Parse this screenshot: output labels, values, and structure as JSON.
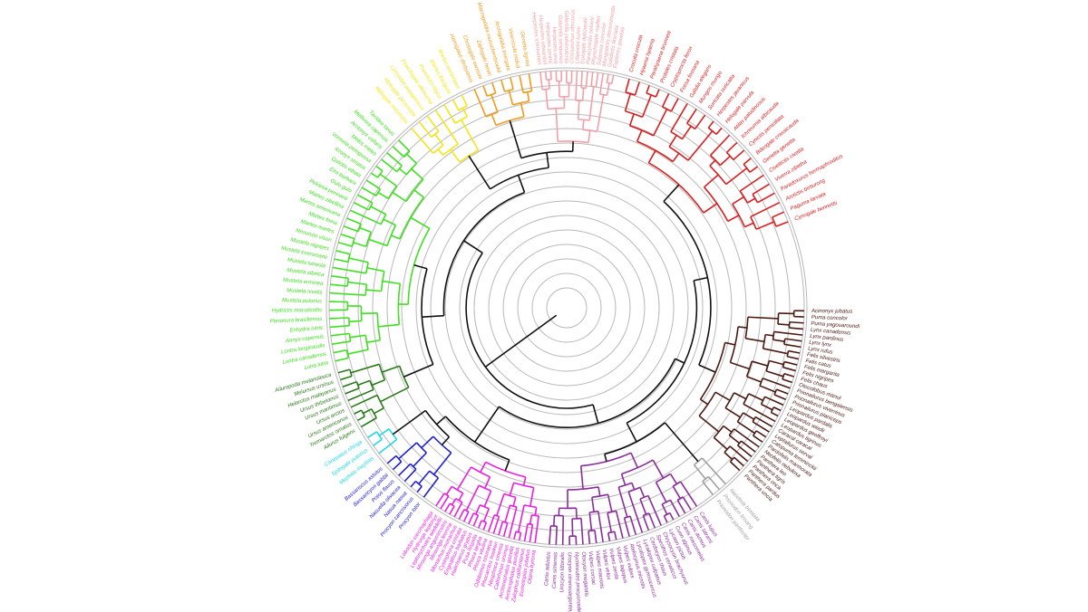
{
  "clades": [
    {
      "color": "#d81e1e",
      "labels": [
        "Crocuta crocuta",
        "Hyaena hyaena",
        "Parahyaena brunnea",
        "Proteles cristata",
        "Cryptoprocta ferox",
        "Fossa fossana",
        "Galidia elegans",
        "Mungos mungo",
        "Suricata suricatta",
        "Herpestes javanicus",
        "Helogale parvula",
        "Atilax paludinosus",
        "Ichneumia albicauda",
        "Cynictis penicillata",
        "Bdeogale crassicauda",
        "Genetta genetta",
        "Civettictis civetta",
        "Viverra zibetha",
        "Paradoxurus hermaphroditus",
        "Arctictis binturong",
        "Paguma larvata",
        "Cynogale bennettii"
      ]
    },
    {
      "color": "#4a1a12",
      "labels": [
        "Acinonyx jubatus",
        "Puma concolor",
        "Puma yagouaroundi",
        "Lynx canadensis",
        "Lynx pardinus",
        "Lynx lynx",
        "Lynx rufus",
        "Felis silvestris",
        "Felis catus",
        "Felis margarita",
        "Felis nigripes",
        "Felis chaus",
        "Otocolobus manul",
        "Prionailurus bengalensis",
        "Prionailurus viverrinus",
        "Prionailurus planiceps",
        "Leopardus pardalis",
        "Leopardus wiedii",
        "Leopardus geoffroyi",
        "Leopardus tigrinus",
        "Caracal caracal",
        "Leptailurus serval",
        "Catopuma temminckii",
        "Pardofelis marmorata",
        "Neofelis nebulosa",
        "Panthera leo",
        "Panthera tigris",
        "Panthera onca",
        "Panthera pardus",
        "Panthera uncia"
      ]
    },
    {
      "color": "#a0a0a0",
      "labels": [
        "Nandinia binotata",
        "Prionodon linsang",
        "Prionodon pardicolor"
      ]
    },
    {
      "color": "#8a2c9a",
      "labels": [
        "Canis lupus",
        "Canis latrans",
        "Canis aureus",
        "Canis mesomelas",
        "Cuon alpinus",
        "Lycaon pictus",
        "Chrysocyon brachyurus",
        "Speothos venaticus",
        "Cerdocyon thous",
        "Lycalopex culpaeus",
        "Lycalopex gymnocercus",
        "Atelocynus microtis",
        "Vulpes vulpes",
        "Vulpes lagopus",
        "Vulpes zerda",
        "Vulpes velox",
        "Vulpes macrotis",
        "Vulpes corsac",
        "Otocyon megalotis",
        "Nyctereutes procyonoides",
        "Urocyon cinereoargenteus",
        "Urocyon littoralis",
        "Canis simensis",
        "Canis adustus"
      ]
    },
    {
      "color": "#e81ee0",
      "labels": [
        "Otaria byronia",
        "Eumetopias jubatus",
        "Zalophus californianus",
        "Arctocephalus pusillus",
        "Arctocephalus gazella",
        "Callorhinus ursinus",
        "Neophoca cinerea",
        "Phocarctos hookeri",
        "Odobenus rosmarus",
        "Phoca vitulina",
        "Phoca largha",
        "Pusa hispida",
        "Halichoerus grypus",
        "Erignathus barbatus",
        "Cystophora cristata",
        "Monachus monachus",
        "Mirounga leonina",
        "Mirounga angustirostris",
        "Leptonychotes weddellii",
        "Hydrurga leptonyx",
        "Lobodon carcinophaga"
      ]
    },
    {
      "color": "#2020d0",
      "labels": [
        "Procyon lotor",
        "Procyon cancrivorus",
        "Nasua nasua",
        "Nasuella olivacea",
        "Potos flavus",
        "Bassaricyon gabbii",
        "Bassariscus astutus"
      ]
    },
    {
      "color": "#20d8e8",
      "labels": [
        "Mephitis mephitis",
        "Spilogale putorius",
        "Conepatus chinga"
      ]
    },
    {
      "color": "#2a7a1a",
      "labels": [
        "Ailurus fulgens",
        "Tremarctos ornatus",
        "Ursus americanus",
        "Ursus arctos",
        "Ursus maritimus",
        "Ursus thibetanus",
        "Helarctos malayanus",
        "Melursus ursinus",
        "Ailuropoda melanoleuca"
      ]
    },
    {
      "color": "#3ee020",
      "labels": [
        "Lutra lutra",
        "Lontra canadensis",
        "Lontra longicaudis",
        "Aonyx capensis",
        "Enhydra lutris",
        "Pteronura brasiliensis",
        "Hydrictis maculicollis",
        "Mustela putorius",
        "Mustela nivalis",
        "Mustela erminea",
        "Mustela sibirica",
        "Mustela lutreola",
        "Mustela eversmanii",
        "Mustela nigripes",
        "Neovison vison",
        "Martes martes",
        "Martes foina",
        "Martes americana",
        "Martes zibellina",
        "Pekania pennanti",
        "Gulo gulo",
        "Eira barbara",
        "Galictis vittata",
        "Ictonyx striatus",
        "Vormela peregusna",
        "Meles meles",
        "Arctonyx collaris",
        "Mellivora capensis",
        "Taxidea taxus"
      ]
    },
    {
      "color": "#f2e61a",
      "labels": [
        "Melogale moschata",
        "Melogale personata",
        "Lyncodon patagonicus",
        "Poecilogale albinucha",
        "Poecilictis libyca",
        "Martes flavigula",
        "Martes melampus"
      ]
    },
    {
      "color": "#f29a1a",
      "labels": [
        "Hemigalus derbyanus",
        "Chrotogale owstoni",
        "Diplogale hosei",
        "Macrogalidia musschenbroekii",
        "Arctogalidia trivirgata",
        "Viverricula indica",
        "Genetta tigrina"
      ]
    },
    {
      "color": "#f2a0a8",
      "labels": [
        "Herpestes ichneumon",
        "Herpestes edwardsii",
        "Herpestes smithii",
        "Herpestes urva",
        "Galerella sanguinea",
        "Galerella pulverulenta",
        "Crossarchus obscurus",
        "Liberiictis kuhni",
        "Dologale dybowskii",
        "Paracynictis selousi",
        "Rhynchogale melleri",
        "Salanoia concolor",
        "Mungotictis decemlineata",
        "Galidictis fasciata",
        "Eupleres goudotii"
      ]
    }
  ]
}
